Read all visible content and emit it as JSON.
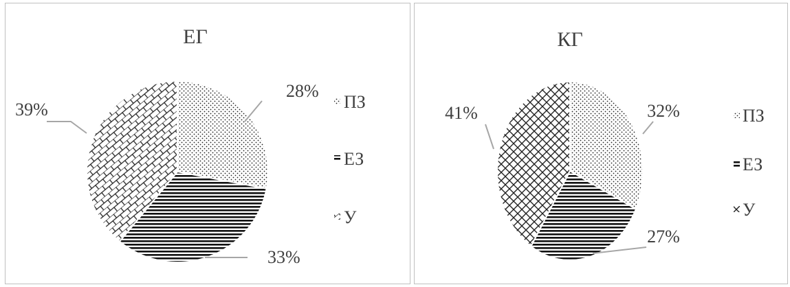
{
  "chart_data": [
    {
      "type": "pie",
      "title": "ЕГ",
      "categories": [
        "ПЗ",
        "ЕЗ",
        "У"
      ],
      "values": [
        28,
        33,
        39
      ],
      "labels": [
        "28%",
        "33%",
        "39%"
      ],
      "legend_position": "right",
      "patterns": [
        "dots",
        "horizontal-lines",
        "brick"
      ]
    },
    {
      "type": "pie",
      "title": "КГ",
      "categories": [
        "ПЗ",
        "ЕЗ",
        "У"
      ],
      "values": [
        32,
        27,
        41
      ],
      "labels": [
        "32%",
        "27%",
        "41%"
      ],
      "legend_position": "right",
      "patterns": [
        "dots",
        "horizontal-lines",
        "weave"
      ]
    }
  ]
}
